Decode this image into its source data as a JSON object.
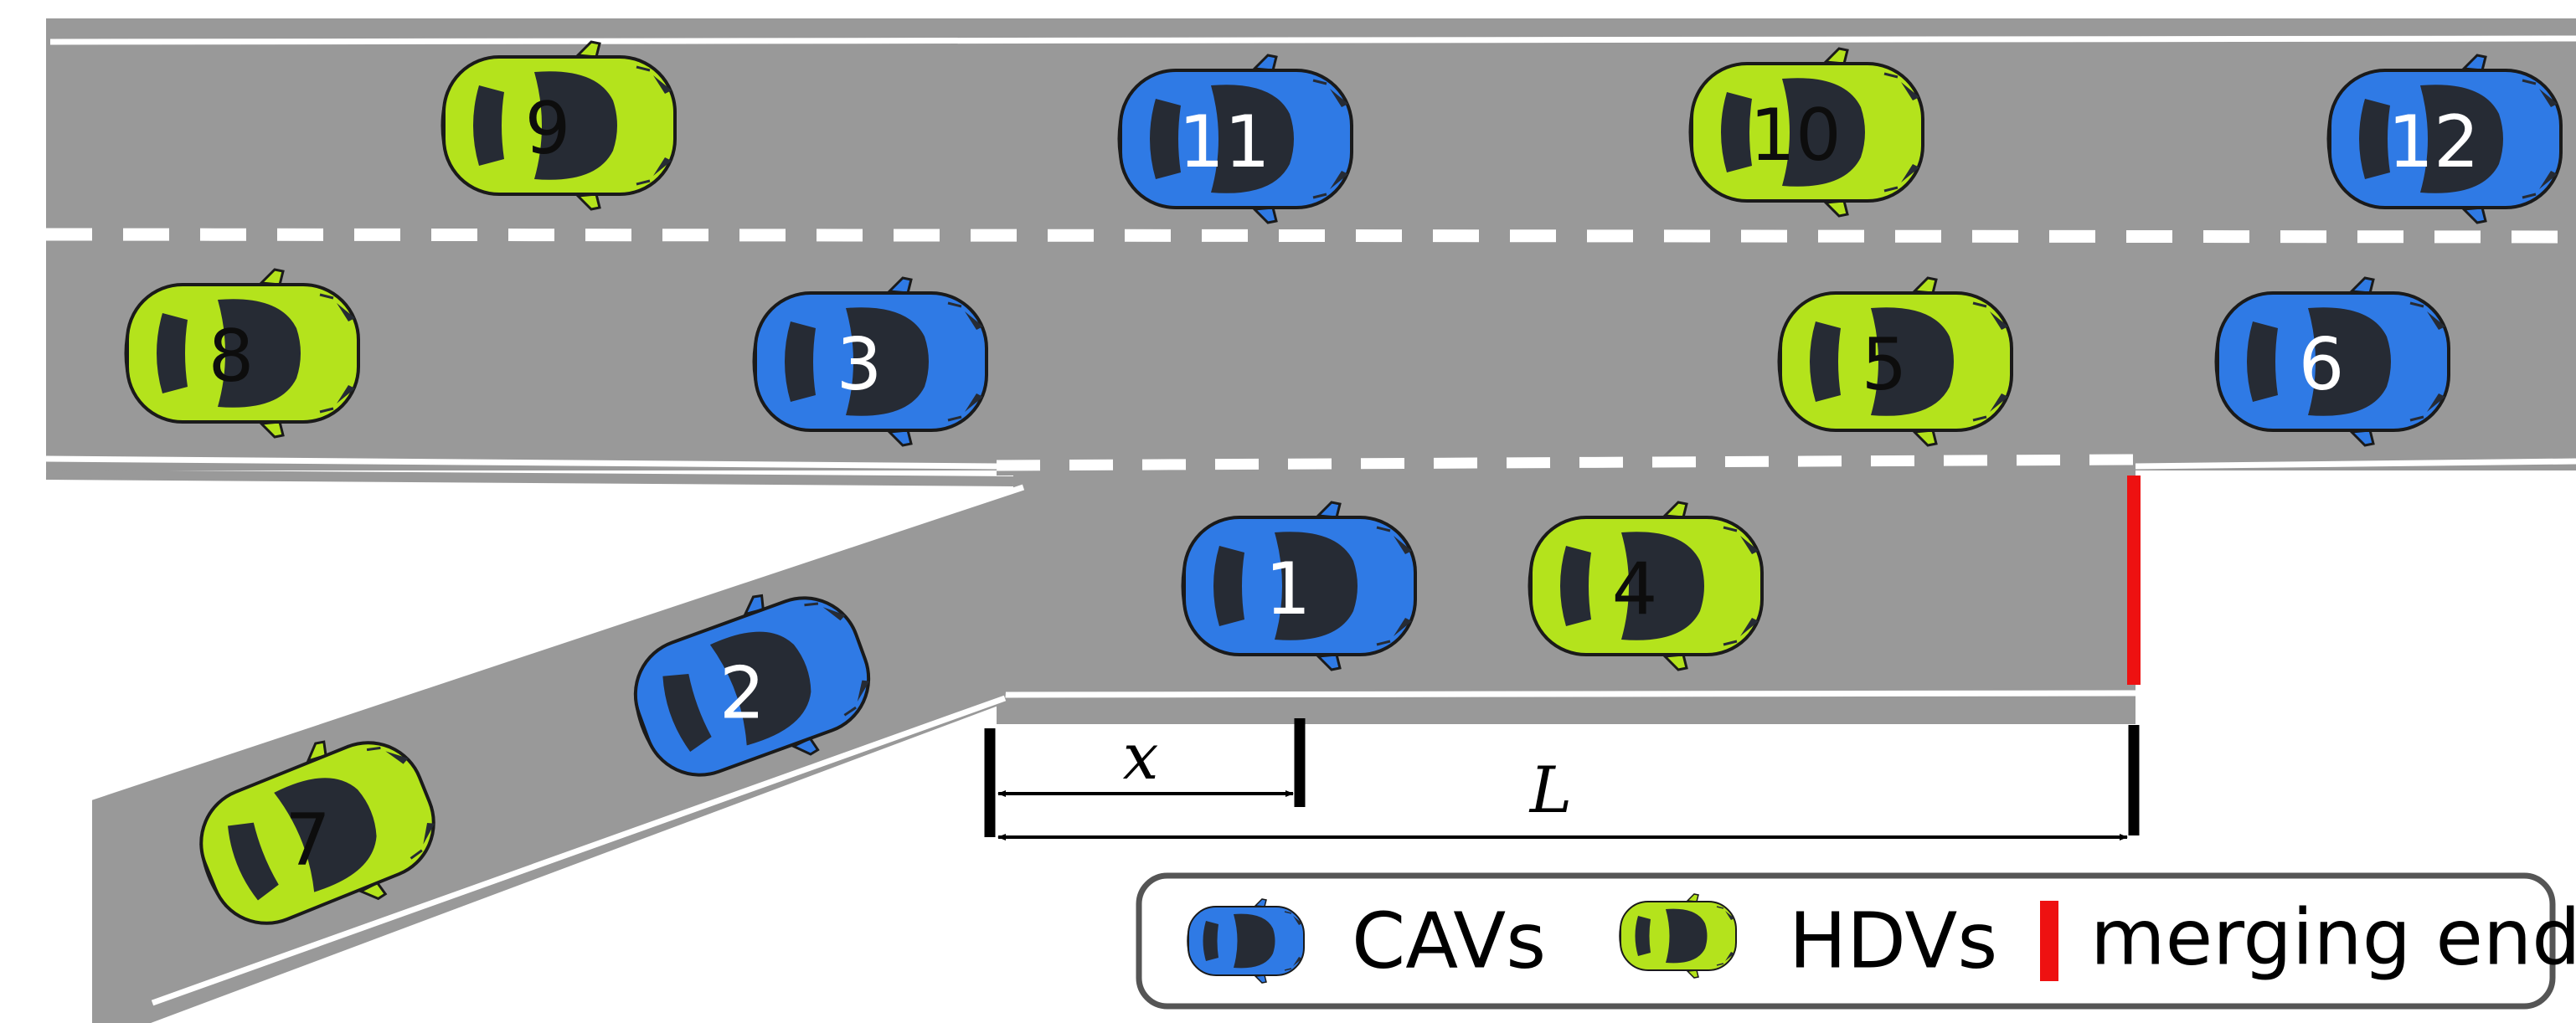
{
  "colors": {
    "road": "#999999",
    "lane_mark": "#ffffff",
    "cav": "#2f7ae5",
    "hdv": "#b4e31c",
    "merging_end": "#ee1111",
    "cabin": "#262b34",
    "outline": "#1a1a1a"
  },
  "vehicles": [
    {
      "id": "1",
      "label": "1",
      "type": "CAV",
      "lane": "ramp"
    },
    {
      "id": "2",
      "label": "2",
      "type": "CAV",
      "lane": "ramp"
    },
    {
      "id": "3",
      "label": "3",
      "type": "CAV",
      "lane": "main-right"
    },
    {
      "id": "4",
      "label": "4",
      "type": "HDV",
      "lane": "ramp"
    },
    {
      "id": "5",
      "label": "5",
      "type": "HDV",
      "lane": "main-right"
    },
    {
      "id": "6",
      "label": "6",
      "type": "CAV",
      "lane": "main-right"
    },
    {
      "id": "7",
      "label": "7",
      "type": "HDV",
      "lane": "ramp"
    },
    {
      "id": "8",
      "label": "8",
      "type": "HDV",
      "lane": "main-right"
    },
    {
      "id": "9",
      "label": "9",
      "type": "HDV",
      "lane": "main-left"
    },
    {
      "id": "10",
      "label": "10",
      "type": "HDV",
      "lane": "main-left"
    },
    {
      "id": "11",
      "label": "11",
      "type": "CAV",
      "lane": "main-left"
    },
    {
      "id": "12",
      "label": "12",
      "type": "CAV",
      "lane": "main-left"
    }
  ],
  "dimensions": {
    "x_label": "x",
    "L_label": "L"
  },
  "legend": {
    "cav_label": "CAVs",
    "hdv_label": "HDVs",
    "merging_end_label": "merging end",
    "cav_icon": "blue-car-icon",
    "hdv_icon": "green-car-icon",
    "merging_end_icon": "red-bar-icon"
  }
}
